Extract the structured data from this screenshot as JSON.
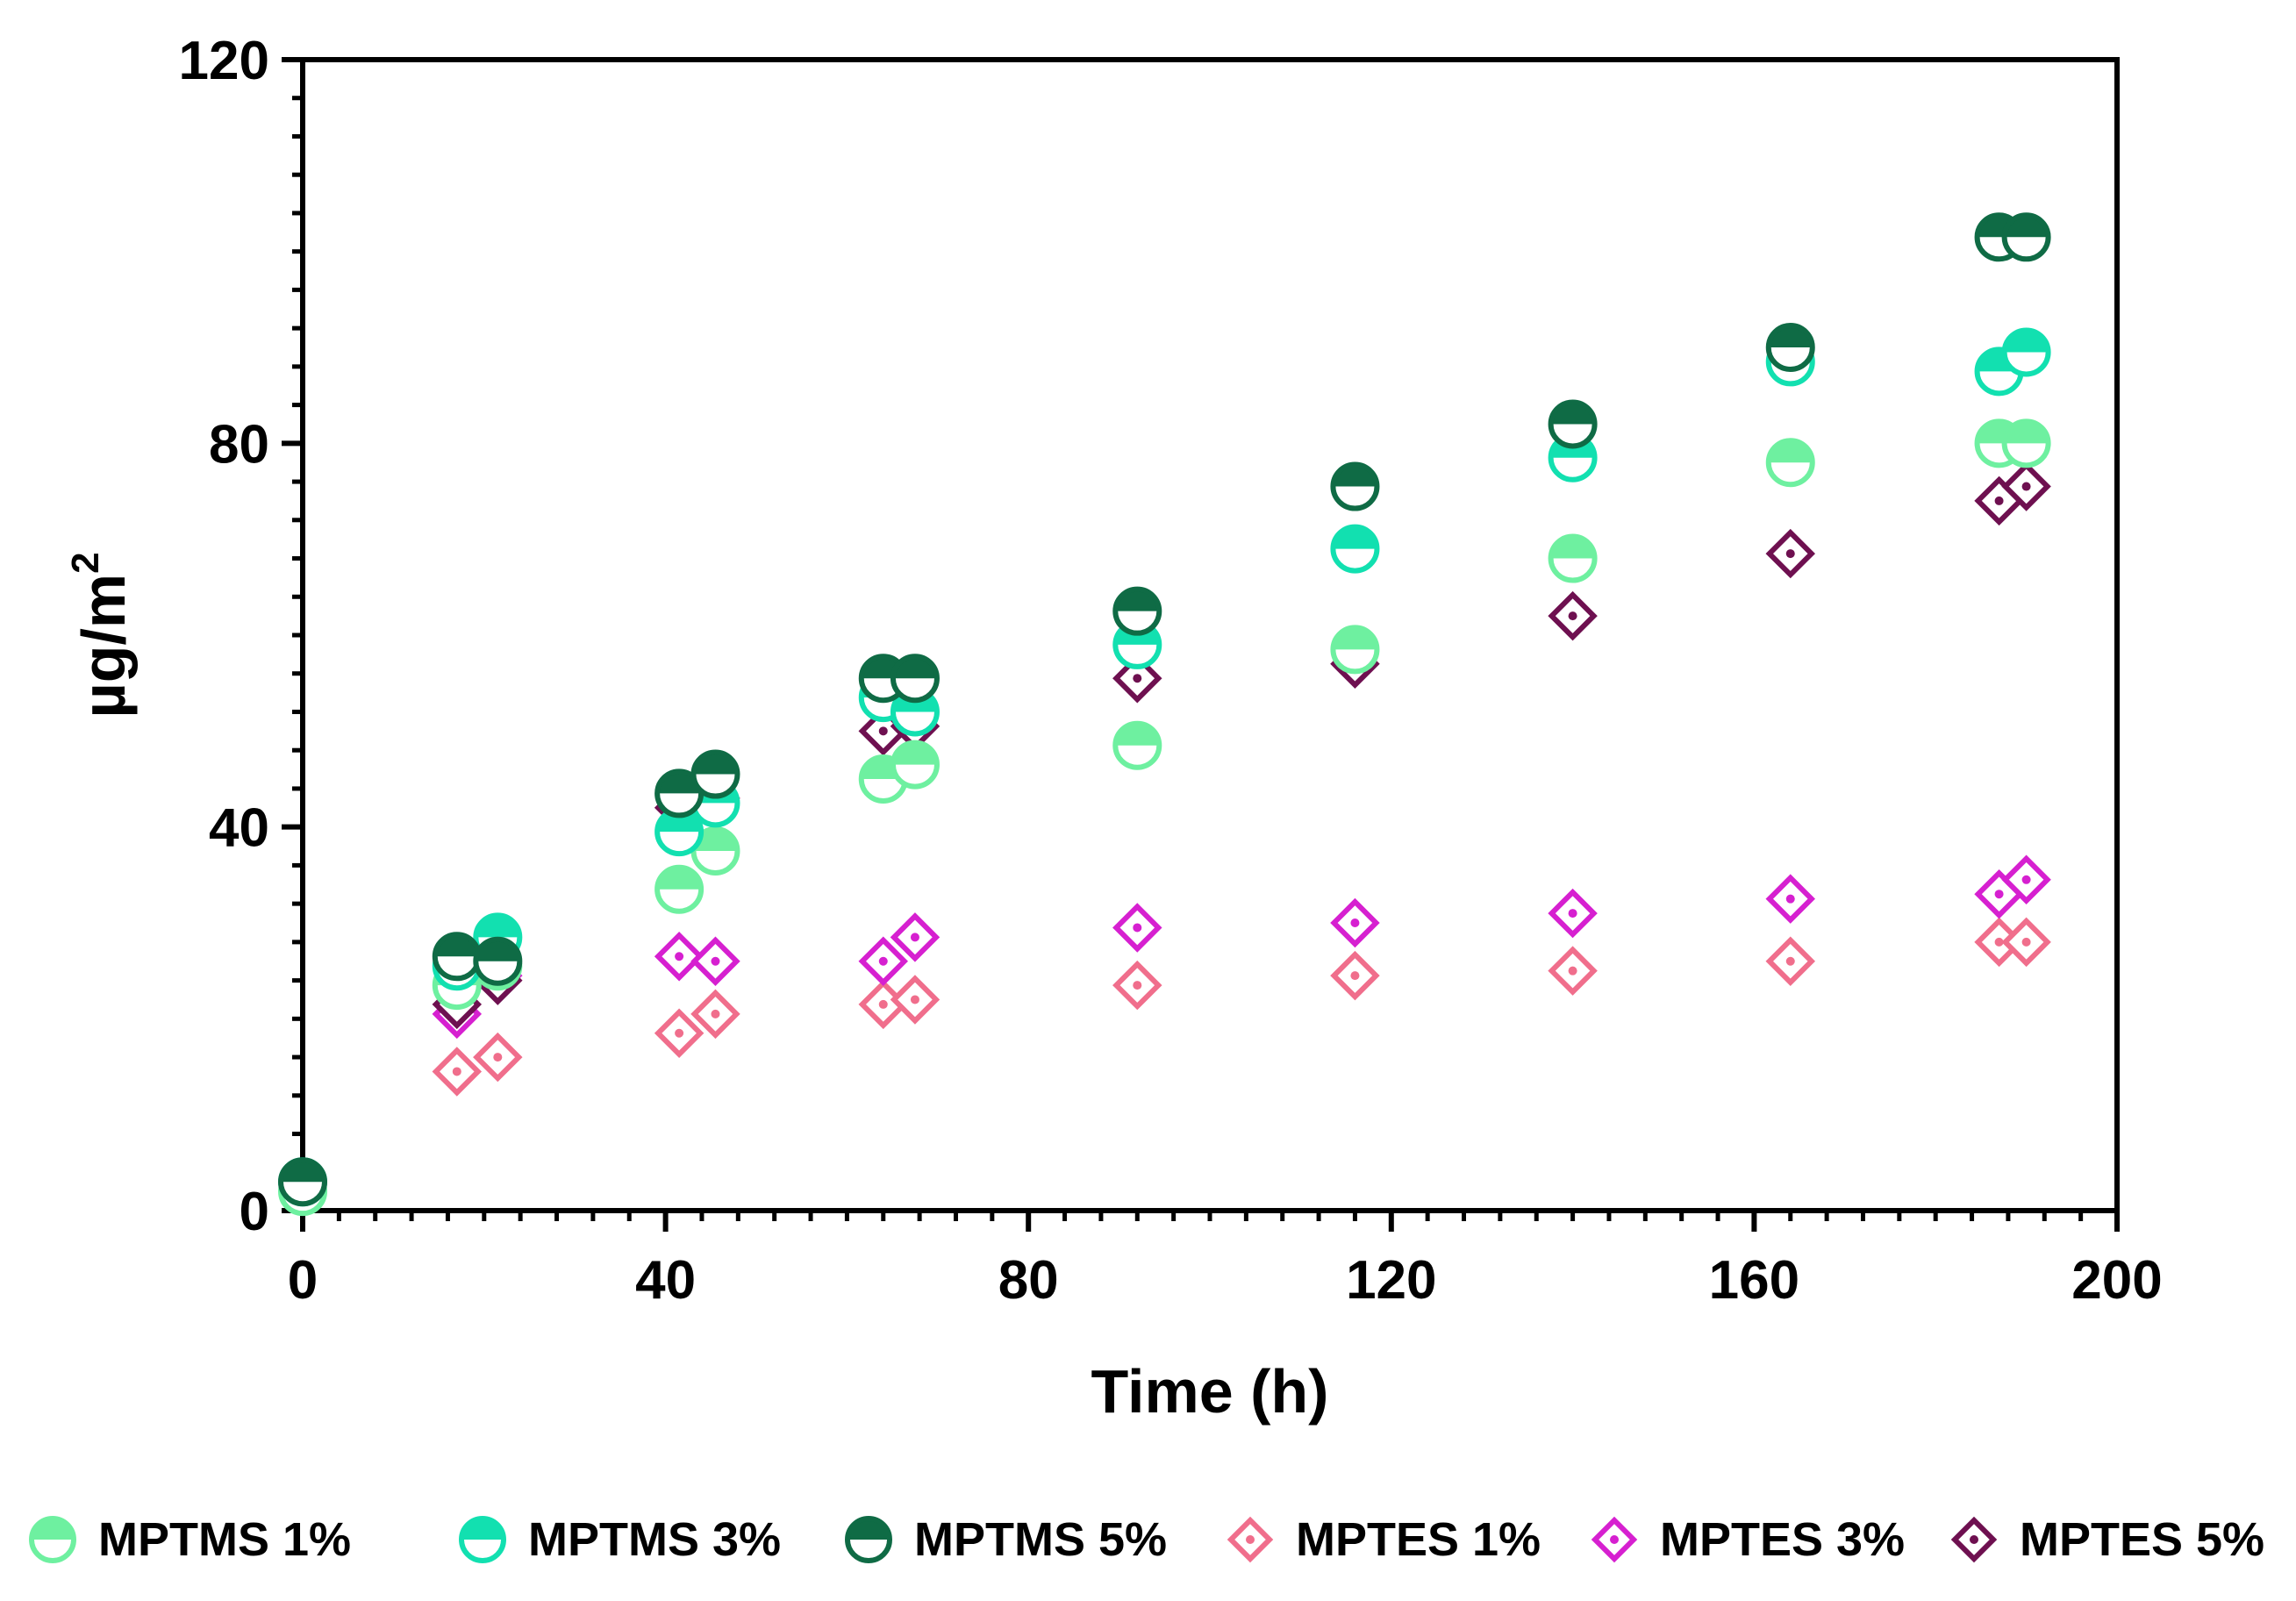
{
  "chart_data": {
    "type": "scatter",
    "title": "",
    "xlabel": "Time (h)",
    "ylabel": "µg/m",
    "ylabel_superscript": "2",
    "xlim": [
      0,
      200
    ],
    "ylim": [
      0,
      120
    ],
    "xticks": [
      "0",
      "40",
      "80",
      "120",
      "160",
      "200"
    ],
    "yticks": [
      "0",
      "40",
      "80",
      "120"
    ],
    "grid": false,
    "legend_position": "bottom",
    "series": [
      {
        "name": "MPTMS 1%",
        "marker": "half-circle",
        "color": "#6ef0a0",
        "x": [
          0,
          17,
          21.5,
          41.5,
          45.5,
          64,
          67.5,
          92,
          116,
          140,
          164,
          187,
          190
        ],
        "y": [
          2,
          23.5,
          25.5,
          33.5,
          37.5,
          45,
          46.5,
          48.5,
          58.5,
          68,
          78,
          80,
          80
        ]
      },
      {
        "name": "MPTMS 3%",
        "marker": "half-circle",
        "color": "#12e0b0",
        "x": [
          0,
          17,
          21.5,
          41.5,
          45.5,
          64,
          67.5,
          92,
          116,
          140,
          164,
          187,
          190
        ],
        "y": [
          3,
          25.5,
          28.5,
          39.5,
          42.5,
          53.5,
          52,
          59,
          69,
          78.5,
          88.5,
          87.5,
          89.5
        ]
      },
      {
        "name": "MPTMS 5%",
        "marker": "half-circle",
        "color": "#0f6b45",
        "x": [
          0,
          17,
          21.5,
          41.5,
          45.5,
          64,
          67.5,
          92,
          116,
          140,
          164,
          187,
          190
        ],
        "y": [
          3,
          26.5,
          26,
          43.5,
          45.5,
          55.5,
          55.5,
          62.5,
          75.5,
          82,
          90,
          101.5,
          101.5
        ]
      },
      {
        "name": "MPTES 1%",
        "marker": "diamond",
        "color": "#f06e8c",
        "x": [
          17,
          21.5,
          41.5,
          45.5,
          64,
          67.5,
          92,
          116,
          140,
          164,
          187,
          190
        ],
        "y": [
          14.5,
          16,
          18.5,
          20.5,
          21.5,
          22,
          23.5,
          24.5,
          25,
          26,
          28,
          28
        ]
      },
      {
        "name": "MPTES 3%",
        "marker": "diamond",
        "color": "#d620d0",
        "x": [
          17,
          21.5,
          41.5,
          45.5,
          64,
          67.5,
          92,
          116,
          140,
          164,
          187,
          190
        ],
        "y": [
          20.5,
          24.5,
          26.5,
          26,
          26,
          28.5,
          29.5,
          30,
          31,
          32.5,
          33,
          34.5
        ]
      },
      {
        "name": "MPTES 5%",
        "marker": "diamond",
        "color": "#6e1050",
        "x": [
          17,
          21.5,
          41.5,
          45.5,
          64,
          67.5,
          92,
          116,
          140,
          164,
          187,
          190
        ],
        "y": [
          21.5,
          24,
          42,
          43,
          50,
          50.5,
          55.5,
          57,
          62,
          68.5,
          74,
          75.5
        ]
      }
    ]
  }
}
